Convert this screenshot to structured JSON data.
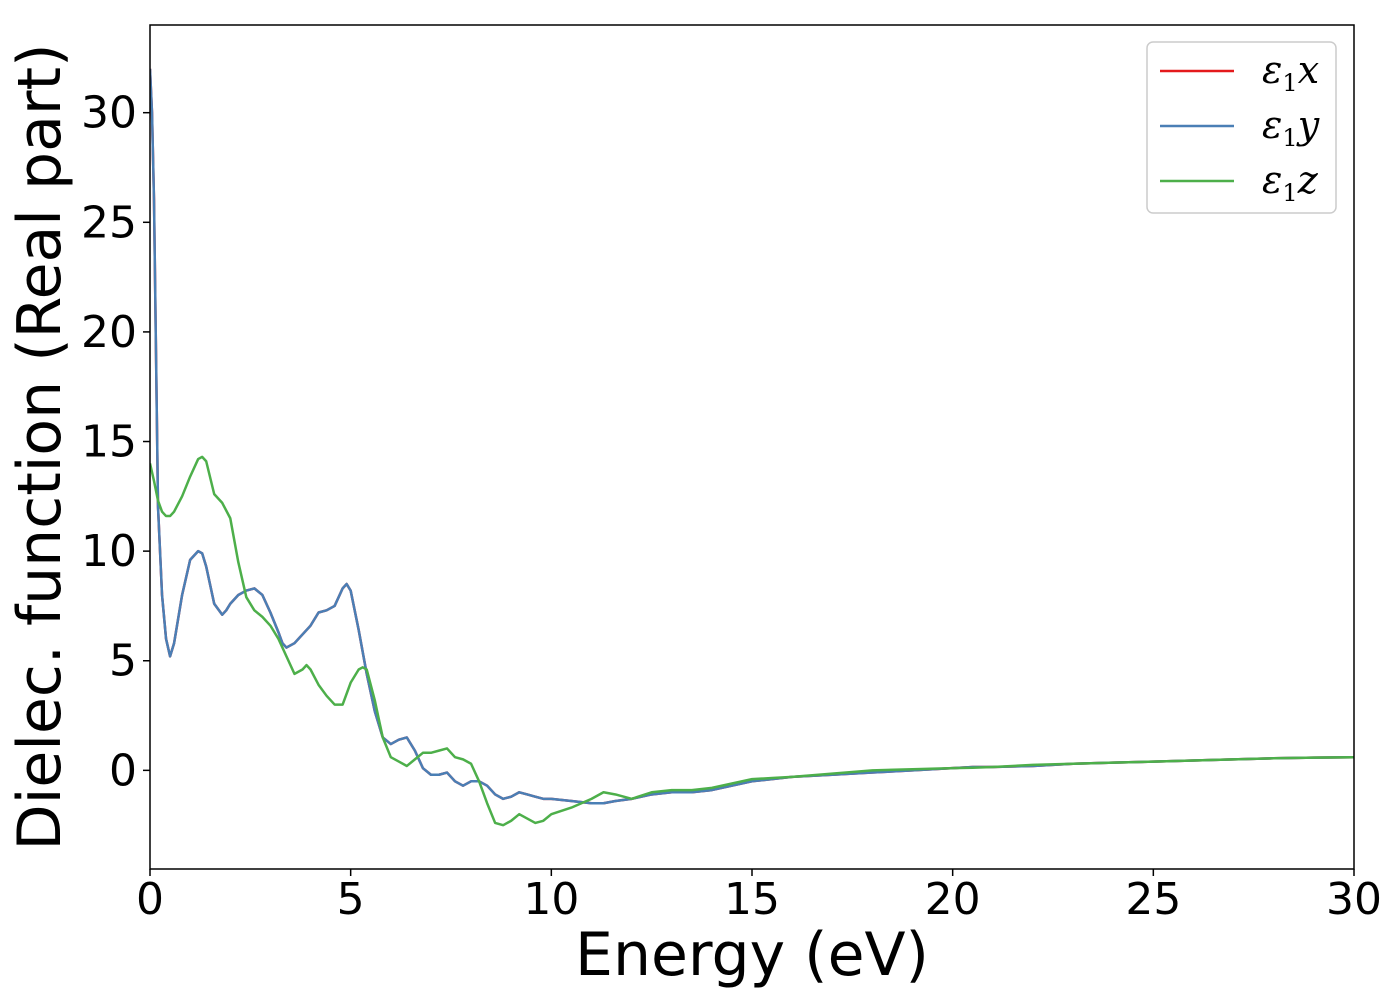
{
  "chart_data": {
    "type": "line",
    "title": "",
    "xlabel": "Energy (eV)",
    "ylabel": "Dielec. function (Real part)",
    "xlim": [
      0,
      30
    ],
    "ylim": [
      -4.5,
      34
    ],
    "xticks": [
      0,
      5,
      10,
      15,
      20,
      25,
      30
    ],
    "yticks": [
      0,
      5,
      10,
      15,
      20,
      25,
      30
    ],
    "xtick_labels": [
      "0",
      "5",
      "10",
      "15",
      "20",
      "25",
      "30"
    ],
    "ytick_labels": [
      "0",
      "5",
      "10",
      "15",
      "20",
      "25",
      "30"
    ],
    "grid": false,
    "legend_position": "top-right",
    "series": [
      {
        "name": "ε1x",
        "legend_base": "ε",
        "legend_sub": "1",
        "legend_var": "x",
        "color": "#e41a1c",
        "x": [
          0,
          0.05,
          0.1,
          0.15,
          0.2,
          0.3,
          0.4,
          0.5,
          0.6,
          0.8,
          1.0,
          1.2,
          1.3,
          1.4,
          1.6,
          1.8,
          1.9,
          2.0,
          2.2,
          2.4,
          2.6,
          2.8,
          3.0,
          3.2,
          3.3,
          3.4,
          3.6,
          3.8,
          4.0,
          4.2,
          4.4,
          4.6,
          4.8,
          4.9,
          5.0,
          5.2,
          5.4,
          5.6,
          5.8,
          6.0,
          6.2,
          6.4,
          6.6,
          6.8,
          7.0,
          7.2,
          7.4,
          7.6,
          7.8,
          8.0,
          8.2,
          8.4,
          8.6,
          8.8,
          9.0,
          9.2,
          9.4,
          9.6,
          9.8,
          10.0,
          10.5,
          11.0,
          11.3,
          11.6,
          12.0,
          12.5,
          13.0,
          13.5,
          14.0,
          14.5,
          15.0,
          15.5,
          16.0,
          17.0,
          18.0,
          19.0,
          20.0,
          20.5,
          21.0,
          22.0,
          23.0,
          24.0,
          25.0,
          26.0,
          27.0,
          28.0,
          29.0,
          30.0
        ],
        "values": [
          32.0,
          30.0,
          26.0,
          19.0,
          12.0,
          8.0,
          6.0,
          5.2,
          5.8,
          8.0,
          9.6,
          10.0,
          9.9,
          9.3,
          7.6,
          7.1,
          7.3,
          7.6,
          8.0,
          8.2,
          8.3,
          8.0,
          7.2,
          6.3,
          5.8,
          5.6,
          5.8,
          6.2,
          6.6,
          7.2,
          7.3,
          7.5,
          8.3,
          8.5,
          8.2,
          6.4,
          4.4,
          2.7,
          1.5,
          1.2,
          1.4,
          1.5,
          0.9,
          0.1,
          -0.2,
          -0.2,
          -0.1,
          -0.5,
          -0.7,
          -0.5,
          -0.5,
          -0.7,
          -1.1,
          -1.3,
          -1.2,
          -1.0,
          -1.1,
          -1.2,
          -1.3,
          -1.3,
          -1.4,
          -1.5,
          -1.5,
          -1.4,
          -1.3,
          -1.1,
          -1.0,
          -1.0,
          -0.9,
          -0.7,
          -0.5,
          -0.4,
          -0.3,
          -0.2,
          -0.1,
          0.0,
          0.1,
          0.15,
          0.15,
          0.2,
          0.3,
          0.35,
          0.4,
          0.45,
          0.5,
          0.55,
          0.58,
          0.6
        ]
      },
      {
        "name": "ε1y",
        "legend_base": "ε",
        "legend_sub": "1",
        "legend_var": "y",
        "color": "#4a7fb5",
        "x": [
          0,
          0.05,
          0.1,
          0.15,
          0.2,
          0.3,
          0.4,
          0.5,
          0.6,
          0.8,
          1.0,
          1.2,
          1.3,
          1.4,
          1.6,
          1.8,
          1.9,
          2.0,
          2.2,
          2.4,
          2.6,
          2.8,
          3.0,
          3.2,
          3.3,
          3.4,
          3.6,
          3.8,
          4.0,
          4.2,
          4.4,
          4.6,
          4.8,
          4.9,
          5.0,
          5.2,
          5.4,
          5.6,
          5.8,
          6.0,
          6.2,
          6.4,
          6.6,
          6.8,
          7.0,
          7.2,
          7.4,
          7.6,
          7.8,
          8.0,
          8.2,
          8.4,
          8.6,
          8.8,
          9.0,
          9.2,
          9.4,
          9.6,
          9.8,
          10.0,
          10.5,
          11.0,
          11.3,
          11.6,
          12.0,
          12.5,
          13.0,
          13.5,
          14.0,
          14.5,
          15.0,
          15.5,
          16.0,
          17.0,
          18.0,
          19.0,
          20.0,
          20.5,
          21.0,
          22.0,
          23.0,
          24.0,
          25.0,
          26.0,
          27.0,
          28.0,
          29.0,
          30.0
        ],
        "values": [
          32.0,
          30.0,
          26.0,
          19.0,
          12.0,
          8.0,
          6.0,
          5.2,
          5.8,
          8.0,
          9.6,
          10.0,
          9.9,
          9.3,
          7.6,
          7.1,
          7.3,
          7.6,
          8.0,
          8.2,
          8.3,
          8.0,
          7.2,
          6.3,
          5.8,
          5.6,
          5.8,
          6.2,
          6.6,
          7.2,
          7.3,
          7.5,
          8.3,
          8.5,
          8.2,
          6.4,
          4.4,
          2.7,
          1.5,
          1.2,
          1.4,
          1.5,
          0.9,
          0.1,
          -0.2,
          -0.2,
          -0.1,
          -0.5,
          -0.7,
          -0.5,
          -0.5,
          -0.7,
          -1.1,
          -1.3,
          -1.2,
          -1.0,
          -1.1,
          -1.2,
          -1.3,
          -1.3,
          -1.4,
          -1.5,
          -1.5,
          -1.4,
          -1.3,
          -1.1,
          -1.0,
          -1.0,
          -0.9,
          -0.7,
          -0.5,
          -0.4,
          -0.3,
          -0.2,
          -0.1,
          0.0,
          0.1,
          0.15,
          0.15,
          0.2,
          0.3,
          0.35,
          0.4,
          0.45,
          0.5,
          0.55,
          0.58,
          0.6
        ]
      },
      {
        "name": "ε1z",
        "legend_base": "ε",
        "legend_sub": "1",
        "legend_var": "z",
        "color": "#4daf4a",
        "x": [
          0,
          0.1,
          0.2,
          0.3,
          0.4,
          0.5,
          0.6,
          0.8,
          1.0,
          1.2,
          1.3,
          1.4,
          1.6,
          1.8,
          2.0,
          2.2,
          2.4,
          2.6,
          2.8,
          3.0,
          3.2,
          3.4,
          3.6,
          3.8,
          3.9,
          4.0,
          4.2,
          4.4,
          4.6,
          4.8,
          5.0,
          5.2,
          5.3,
          5.4,
          5.6,
          5.8,
          6.0,
          6.2,
          6.4,
          6.6,
          6.8,
          7.0,
          7.2,
          7.4,
          7.6,
          7.8,
          8.0,
          8.2,
          8.4,
          8.6,
          8.8,
          9.0,
          9.2,
          9.4,
          9.6,
          9.8,
          10.0,
          10.5,
          11.0,
          11.3,
          11.6,
          12.0,
          12.5,
          13.0,
          13.5,
          14.0,
          14.5,
          15.0,
          15.5,
          16.0,
          17.0,
          18.0,
          19.0,
          20.0,
          20.5,
          21.0,
          22.0,
          23.0,
          24.0,
          25.0,
          26.0,
          27.0,
          28.0,
          29.0,
          30.0
        ],
        "values": [
          14.0,
          13.2,
          12.3,
          11.8,
          11.6,
          11.6,
          11.8,
          12.5,
          13.4,
          14.2,
          14.3,
          14.1,
          12.6,
          12.2,
          11.5,
          9.5,
          7.9,
          7.3,
          7.0,
          6.6,
          6.0,
          5.2,
          4.4,
          4.6,
          4.8,
          4.6,
          3.9,
          3.4,
          3.0,
          3.0,
          4.0,
          4.6,
          4.7,
          4.6,
          3.2,
          1.5,
          0.6,
          0.4,
          0.2,
          0.5,
          0.8,
          0.8,
          0.9,
          1.0,
          0.6,
          0.5,
          0.3,
          -0.5,
          -1.5,
          -2.4,
          -2.5,
          -2.3,
          -2.0,
          -2.2,
          -2.4,
          -2.3,
          -2.0,
          -1.7,
          -1.3,
          -1.0,
          -1.1,
          -1.3,
          -1.0,
          -0.9,
          -0.9,
          -0.8,
          -0.6,
          -0.4,
          -0.35,
          -0.3,
          -0.15,
          0.0,
          0.05,
          0.1,
          0.12,
          0.15,
          0.25,
          0.3,
          0.35,
          0.4,
          0.45,
          0.5,
          0.55,
          0.58,
          0.6
        ]
      }
    ]
  },
  "colors": {
    "axis": "#000000",
    "background": "#ffffff",
    "legend_border": "#cccccc"
  }
}
